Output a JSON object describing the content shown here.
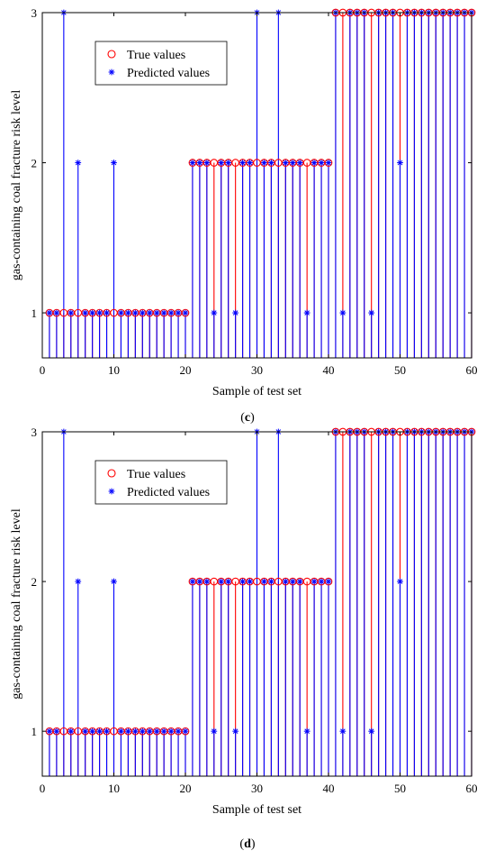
{
  "chart_data": [
    {
      "type": "stem",
      "panel_label": "c",
      "xlabel": "Sample of test set",
      "ylabel": "gas-containing coal fracture risk level",
      "xlim": [
        0,
        60
      ],
      "ylim": [
        0.7,
        3
      ],
      "xticks": [
        0,
        10,
        20,
        30,
        40,
        50,
        60
      ],
      "yticks": [
        1,
        2,
        3
      ],
      "legend": {
        "position": "top-left"
      },
      "x": [
        1,
        2,
        3,
        4,
        5,
        6,
        7,
        8,
        9,
        10,
        11,
        12,
        13,
        14,
        15,
        16,
        17,
        18,
        19,
        20,
        21,
        22,
        23,
        24,
        25,
        26,
        27,
        28,
        29,
        30,
        31,
        32,
        33,
        34,
        35,
        36,
        37,
        38,
        39,
        40,
        41,
        42,
        43,
        44,
        45,
        46,
        47,
        48,
        49,
        50,
        51,
        52,
        53,
        54,
        55,
        56,
        57,
        58,
        59,
        60
      ],
      "series": [
        {
          "name": "True values",
          "color": "#ff0000",
          "marker": "circle",
          "values": [
            1,
            1,
            1,
            1,
            1,
            1,
            1,
            1,
            1,
            1,
            1,
            1,
            1,
            1,
            1,
            1,
            1,
            1,
            1,
            1,
            2,
            2,
            2,
            2,
            2,
            2,
            2,
            2,
            2,
            2,
            2,
            2,
            2,
            2,
            2,
            2,
            2,
            2,
            2,
            2,
            3,
            3,
            3,
            3,
            3,
            3,
            3,
            3,
            3,
            3,
            3,
            3,
            3,
            3,
            3,
            3,
            3,
            3,
            3,
            3
          ]
        },
        {
          "name": "Predicted values",
          "color": "#0000ff",
          "marker": "asterisk",
          "values": [
            1,
            1,
            3,
            1,
            2,
            1,
            1,
            1,
            1,
            2,
            1,
            1,
            1,
            1,
            1,
            1,
            1,
            1,
            1,
            1,
            2,
            2,
            2,
            1,
            2,
            2,
            1,
            2,
            2,
            3,
            2,
            2,
            3,
            2,
            2,
            2,
            1,
            2,
            2,
            2,
            3,
            1,
            3,
            3,
            3,
            1,
            3,
            3,
            3,
            2,
            3,
            3,
            3,
            3,
            3,
            3,
            3,
            3,
            3,
            3
          ]
        }
      ]
    },
    {
      "type": "stem",
      "panel_label": "d",
      "xlabel": "Sample of test set",
      "ylabel": "gas-containing coal fracture risk level",
      "xlim": [
        0,
        60
      ],
      "ylim": [
        0.7,
        3
      ],
      "xticks": [
        0,
        10,
        20,
        30,
        40,
        50,
        60
      ],
      "yticks": [
        1,
        2,
        3
      ],
      "legend": {
        "position": "top-left"
      },
      "x": [
        1,
        2,
        3,
        4,
        5,
        6,
        7,
        8,
        9,
        10,
        11,
        12,
        13,
        14,
        15,
        16,
        17,
        18,
        19,
        20,
        21,
        22,
        23,
        24,
        25,
        26,
        27,
        28,
        29,
        30,
        31,
        32,
        33,
        34,
        35,
        36,
        37,
        38,
        39,
        40,
        41,
        42,
        43,
        44,
        45,
        46,
        47,
        48,
        49,
        50,
        51,
        52,
        53,
        54,
        55,
        56,
        57,
        58,
        59,
        60
      ],
      "series": [
        {
          "name": "True values",
          "color": "#ff0000",
          "marker": "circle",
          "values": [
            1,
            1,
            1,
            1,
            1,
            1,
            1,
            1,
            1,
            1,
            1,
            1,
            1,
            1,
            1,
            1,
            1,
            1,
            1,
            1,
            2,
            2,
            2,
            2,
            2,
            2,
            2,
            2,
            2,
            2,
            2,
            2,
            2,
            2,
            2,
            2,
            2,
            2,
            2,
            2,
            3,
            3,
            3,
            3,
            3,
            3,
            3,
            3,
            3,
            3,
            3,
            3,
            3,
            3,
            3,
            3,
            3,
            3,
            3,
            3
          ]
        },
        {
          "name": "Predicted values",
          "color": "#0000ff",
          "marker": "asterisk",
          "values": [
            1,
            1,
            3,
            1,
            2,
            1,
            1,
            1,
            1,
            2,
            1,
            1,
            1,
            1,
            1,
            1,
            1,
            1,
            1,
            1,
            2,
            2,
            2,
            1,
            2,
            2,
            1,
            2,
            2,
            3,
            2,
            2,
            3,
            2,
            2,
            2,
            1,
            2,
            2,
            2,
            3,
            1,
            3,
            3,
            3,
            1,
            3,
            3,
            3,
            2,
            3,
            3,
            3,
            3,
            3,
            3,
            3,
            3,
            3,
            3
          ]
        }
      ]
    }
  ]
}
